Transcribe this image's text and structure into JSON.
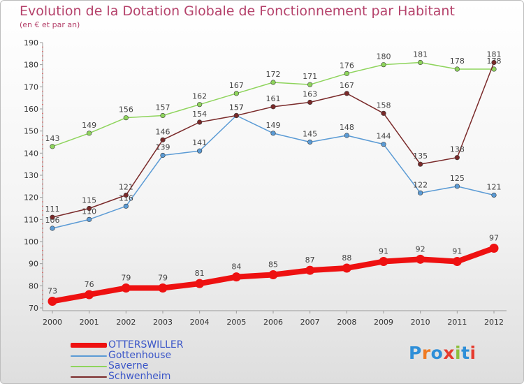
{
  "header": {
    "title": "Evolution de la Dotation Globale de Fonctionnement par Habitant",
    "subtitle": "(en € et par an)"
  },
  "logo": {
    "text": "Proxiti",
    "colors": [
      "#2f8fd8",
      "#ef7a22",
      "#2f8fd8",
      "#e63c2f",
      "#8dbf3c",
      "#2f8fd8",
      "#e63c2f"
    ]
  },
  "chart_data": {
    "type": "line",
    "x": [
      2000,
      2001,
      2002,
      2003,
      2004,
      2005,
      2006,
      2007,
      2008,
      2009,
      2010,
      2011,
      2012
    ],
    "ylim": [
      70,
      190
    ],
    "yticks": [
      70,
      80,
      90,
      100,
      110,
      120,
      130,
      140,
      150,
      160,
      170,
      180,
      190
    ],
    "grid": false,
    "legend": "bottom-left",
    "series": [
      {
        "name": "OTTERSWILLER",
        "color": "#ee1111",
        "values": [
          73,
          76,
          79,
          79,
          81,
          84,
          85,
          87,
          88,
          91,
          92,
          91,
          97
        ]
      },
      {
        "name": "Gottenhouse",
        "color": "#5b9bd5",
        "values": [
          106,
          110,
          116,
          139,
          141,
          157,
          149,
          145,
          148,
          144,
          122,
          125,
          121
        ]
      },
      {
        "name": "Saverne",
        "color": "#8ed45c",
        "values": [
          143,
          149,
          156,
          157,
          162,
          167,
          172,
          171,
          176,
          180,
          181,
          178,
          178
        ]
      },
      {
        "name": "Schwenheim",
        "color": "#7a2a2a",
        "values": [
          111,
          115,
          121,
          146,
          154,
          157,
          161,
          163,
          167,
          158,
          135,
          138,
          181
        ]
      }
    ]
  }
}
